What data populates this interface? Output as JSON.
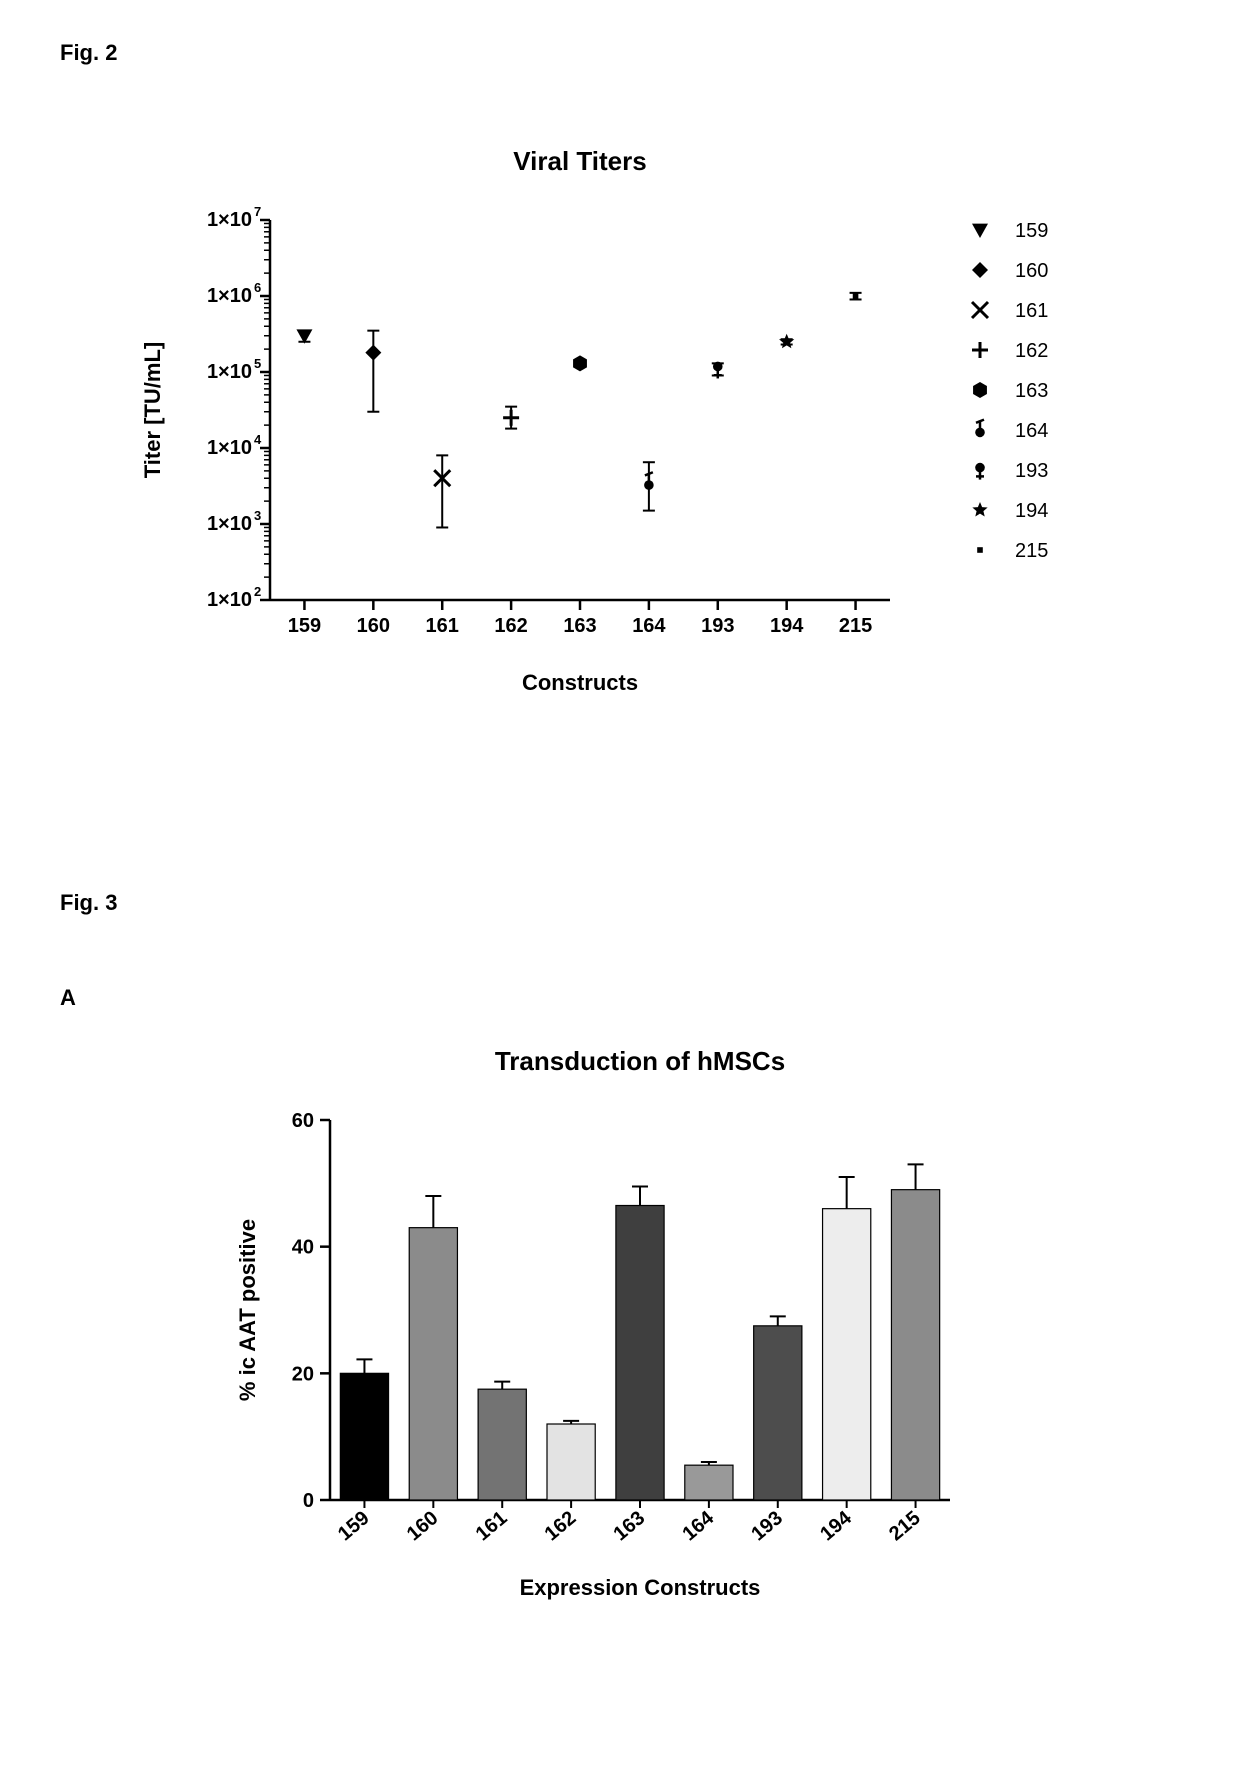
{
  "fig2_label": "Fig. 2",
  "fig3_label": "Fig. 3",
  "panelA_label": "A",
  "chart1": {
    "type": "scatter",
    "title": "Viral Titers",
    "title_fontsize": 26,
    "xlabel": "Constructs",
    "ylabel": "Titer [TU/mL]",
    "label_fontsize": 22,
    "tick_fontsize": 20,
    "axis_color": "#000000",
    "background_color": "#ffffff",
    "yscale": "log",
    "ylim": [
      100,
      10000000
    ],
    "ytick_exponents": [
      2,
      3,
      4,
      5,
      6,
      7
    ],
    "categories": [
      "159",
      "160",
      "161",
      "162",
      "163",
      "164",
      "193",
      "194",
      "215"
    ],
    "points": [
      {
        "label": "159",
        "y": 300000,
        "err_low": 250000,
        "err_high": 350000,
        "marker": "triangle-down"
      },
      {
        "label": "160",
        "y": 180000,
        "err_low": 30000,
        "err_high": 350000,
        "marker": "diamond"
      },
      {
        "label": "161",
        "y": 4000,
        "err_low": 900,
        "err_high": 8000,
        "marker": "x"
      },
      {
        "label": "162",
        "y": 25000,
        "err_low": 18000,
        "err_high": 35000,
        "marker": "plus"
      },
      {
        "label": "163",
        "y": 130000,
        "err_low": 120000,
        "err_high": 140000,
        "marker": "hexagon"
      },
      {
        "label": "164",
        "y": 3500,
        "err_low": 1500,
        "err_high": 6500,
        "marker": "circle-stem-up"
      },
      {
        "label": "193",
        "y": 110000,
        "err_low": 90000,
        "err_high": 130000,
        "marker": "circle-stem-down"
      },
      {
        "label": "194",
        "y": 250000,
        "err_low": 230000,
        "err_high": 270000,
        "marker": "star"
      },
      {
        "label": "215",
        "y": 1000000,
        "err_low": 900000,
        "err_high": 1100000,
        "marker": "small-square"
      }
    ],
    "legend_items": [
      "159",
      "160",
      "161",
      "162",
      "163",
      "164",
      "193",
      "194",
      "215"
    ],
    "marker_color": "#000000",
    "error_bar_width": 2
  },
  "chart2": {
    "type": "bar",
    "title": "Transduction of hMSCs",
    "title_fontsize": 26,
    "xlabel": "Expression Constructs",
    "ylabel": "% ic AAT positive",
    "label_fontsize": 22,
    "tick_fontsize": 20,
    "axis_color": "#000000",
    "background_color": "#ffffff",
    "ylim": [
      0,
      60
    ],
    "ytick_step": 20,
    "categories": [
      "159",
      "160",
      "161",
      "162",
      "163",
      "164",
      "193",
      "194",
      "215"
    ],
    "bars": [
      {
        "label": "159",
        "value": 20,
        "err": 2.2,
        "color": "#000000"
      },
      {
        "label": "160",
        "value": 43,
        "err": 5,
        "color": "#8b8b8b"
      },
      {
        "label": "161",
        "value": 17.5,
        "err": 1.2,
        "color": "#737373"
      },
      {
        "label": "162",
        "value": 12,
        "err": 0.5,
        "color": "#e3e3e3"
      },
      {
        "label": "163",
        "value": 46.5,
        "err": 3,
        "color": "#3f3f3f"
      },
      {
        "label": "164",
        "value": 5.5,
        "err": 0.5,
        "color": "#999999"
      },
      {
        "label": "193",
        "value": 27.5,
        "err": 1.5,
        "color": "#4d4d4d"
      },
      {
        "label": "194",
        "value": 46,
        "err": 5,
        "color": "#ededed"
      },
      {
        "label": "215",
        "value": 49,
        "err": 4,
        "color": "#8b8b8b"
      }
    ],
    "bar_width": 0.7,
    "error_bar_color": "#000000",
    "error_bar_width": 2
  }
}
